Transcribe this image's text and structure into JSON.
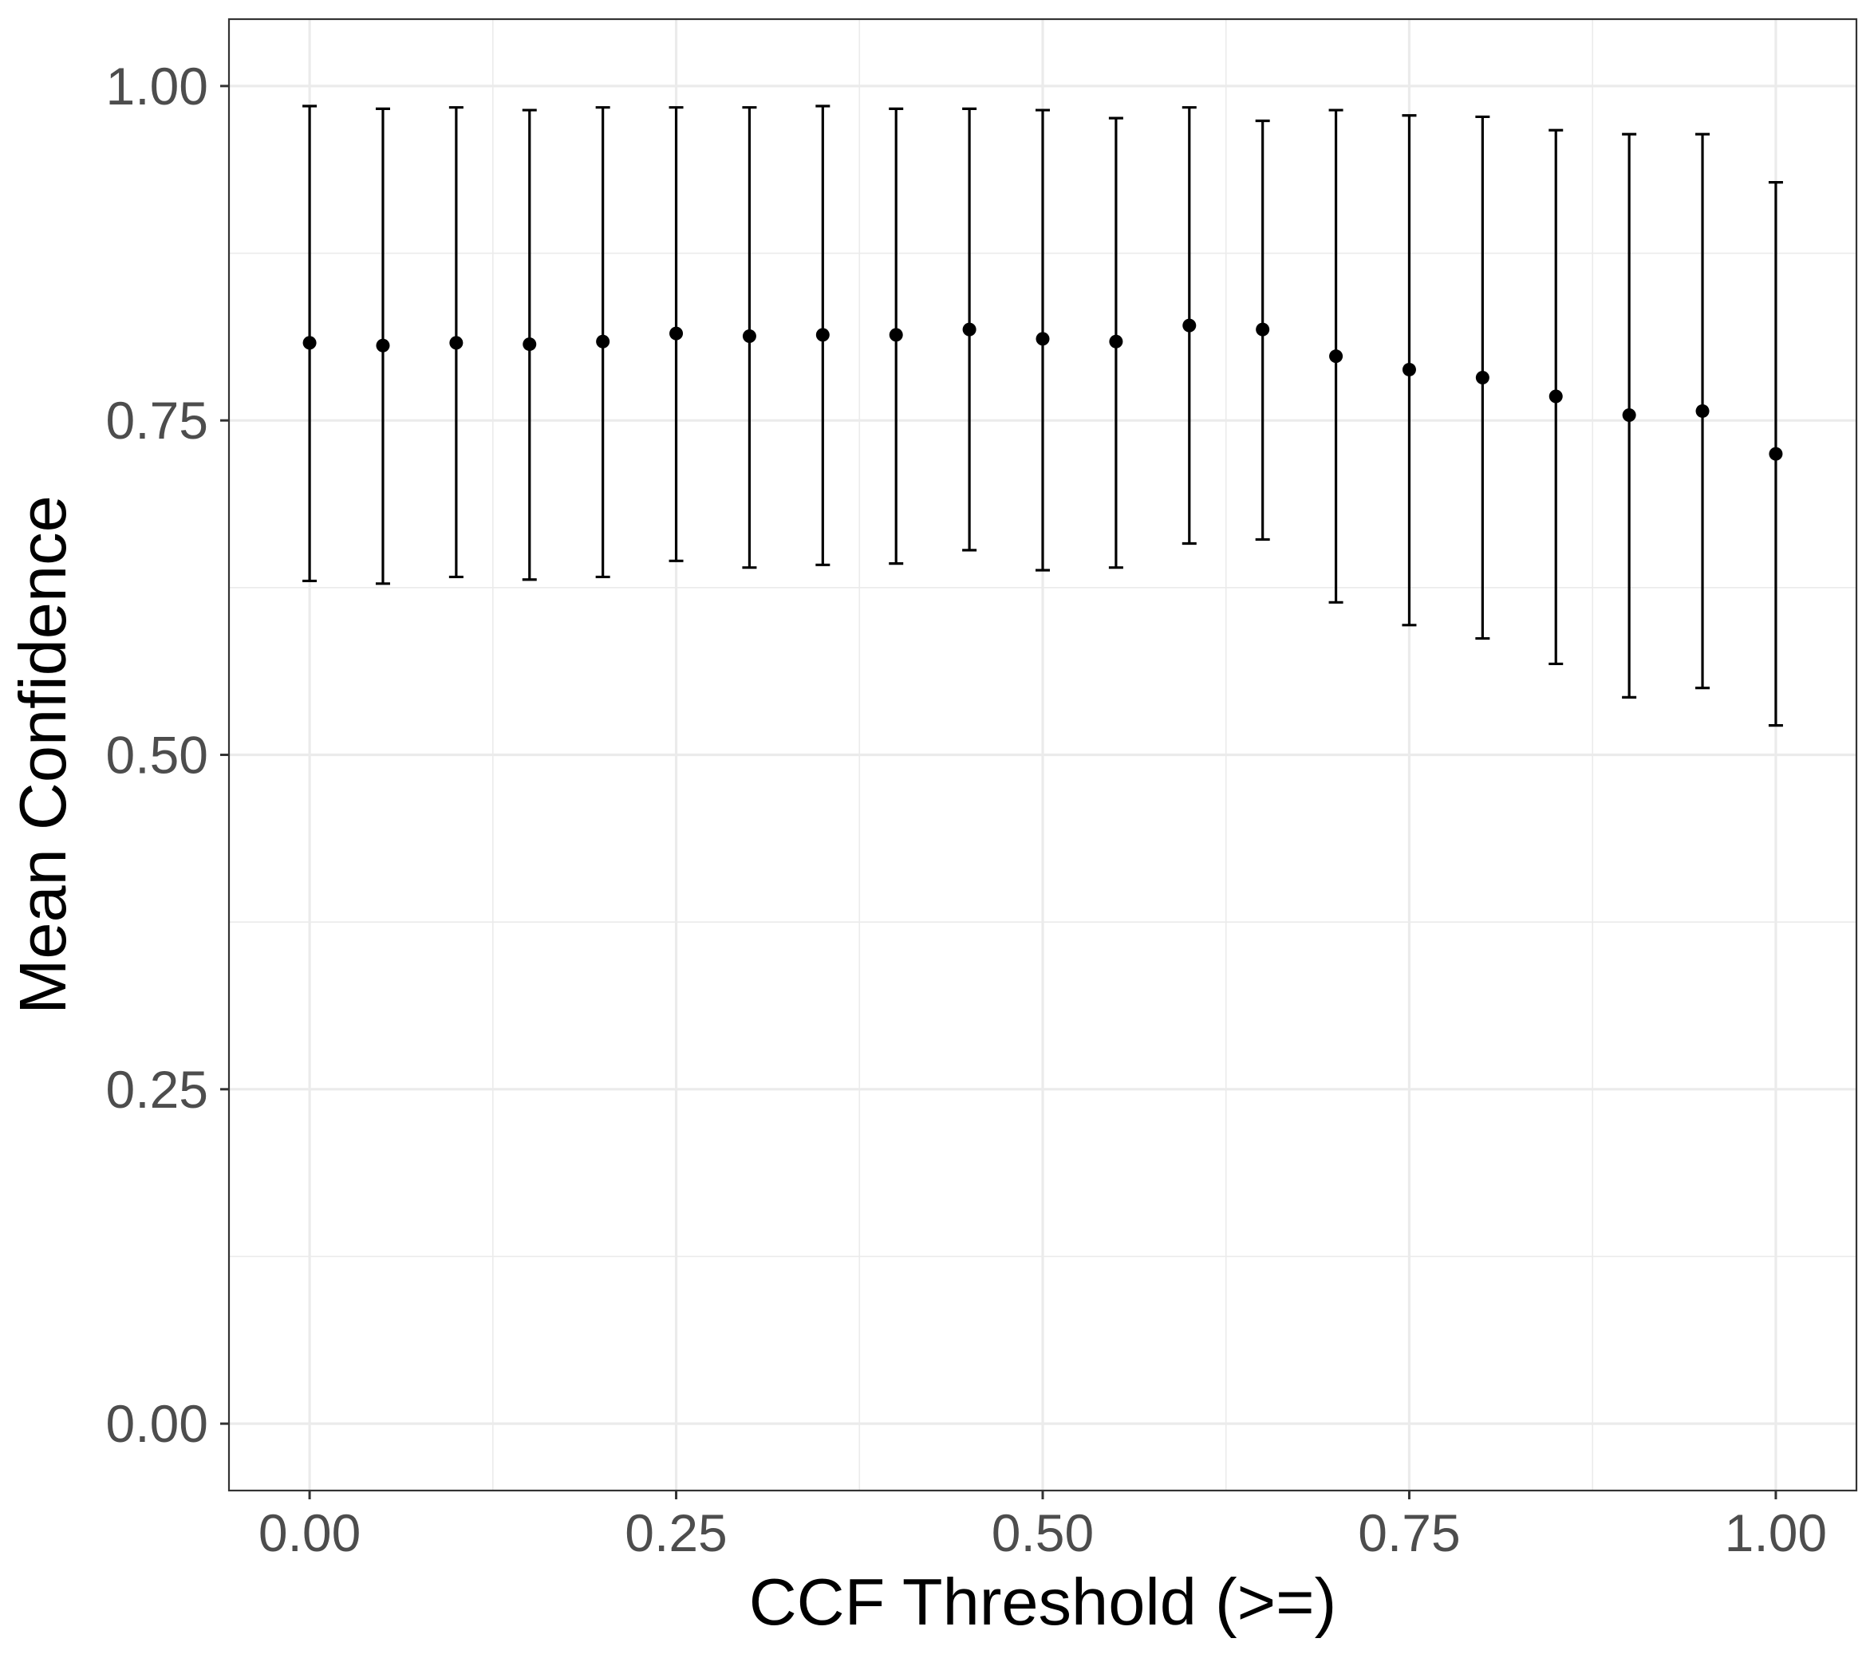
{
  "chart_data": {
    "type": "scatter",
    "title": "",
    "xlabel": "CCF Threshold (>=)",
    "ylabel": "Mean Confidence",
    "xlim": [
      -0.055,
      1.055
    ],
    "ylim": [
      -0.05,
      1.05
    ],
    "x_ticks": [
      0.0,
      0.25,
      0.5,
      0.75,
      1.0
    ],
    "x_tick_labels": [
      "0.00",
      "0.25",
      "0.50",
      "0.75",
      "1.00"
    ],
    "y_ticks": [
      0.0,
      0.25,
      0.5,
      0.75,
      1.0
    ],
    "y_tick_labels": [
      "0.00",
      "0.25",
      "0.50",
      "0.75",
      "1.00"
    ],
    "x_minor_ticks": [
      0.125,
      0.375,
      0.625,
      0.875
    ],
    "y_minor_ticks": [
      0.125,
      0.375,
      0.625,
      0.875
    ],
    "grid": true,
    "theme": "bw",
    "error_bars": true,
    "point_color": "#000000",
    "panel_border_color": "#333333",
    "grid_color": "#ebebeb",
    "series": [
      {
        "x": [
          0.0,
          0.05,
          0.1,
          0.15,
          0.2,
          0.25,
          0.3,
          0.35,
          0.4,
          0.45,
          0.5,
          0.55,
          0.6,
          0.65,
          0.7,
          0.75,
          0.8,
          0.85,
          0.9,
          0.95,
          1.0
        ],
        "y": [
          0.808,
          0.806,
          0.808,
          0.807,
          0.809,
          0.815,
          0.813,
          0.814,
          0.814,
          0.818,
          0.811,
          0.809,
          0.821,
          0.818,
          0.798,
          0.788,
          0.782,
          0.768,
          0.754,
          0.757,
          0.725
        ],
        "lower": [
          0.63,
          0.628,
          0.633,
          0.631,
          0.633,
          0.645,
          0.64,
          0.642,
          0.643,
          0.653,
          0.638,
          0.64,
          0.658,
          0.661,
          0.614,
          0.597,
          0.587,
          0.568,
          0.543,
          0.55,
          0.522
        ],
        "upper": [
          0.985,
          0.983,
          0.984,
          0.982,
          0.984,
          0.984,
          0.984,
          0.985,
          0.983,
          0.983,
          0.982,
          0.976,
          0.984,
          0.974,
          0.982,
          0.978,
          0.977,
          0.967,
          0.964,
          0.964,
          0.928
        ]
      }
    ]
  }
}
